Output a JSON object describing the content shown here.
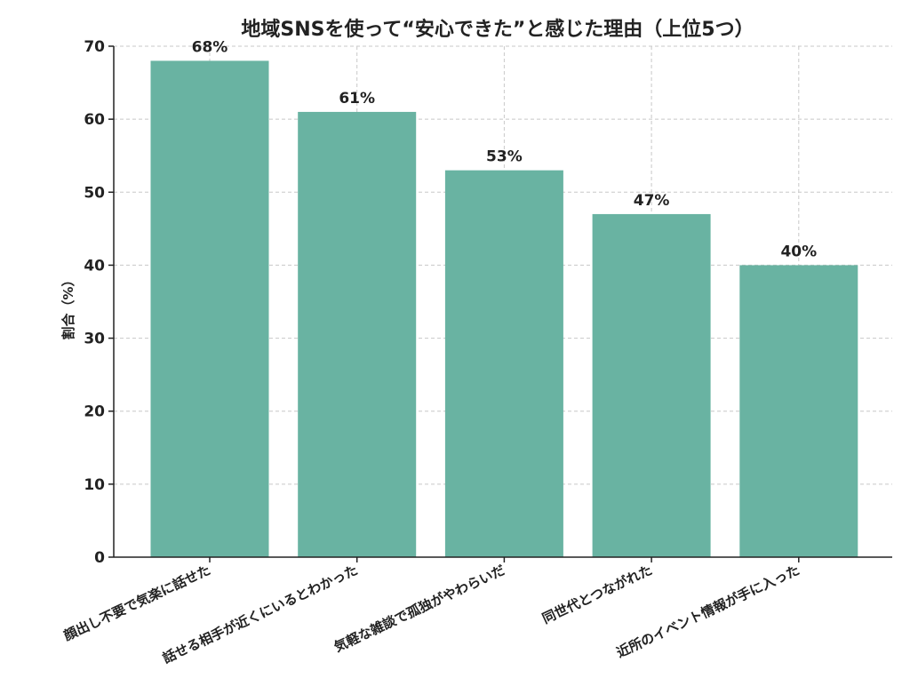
{
  "chart_data": {
    "type": "bar",
    "title": "地域SNSを使って“安心できた”と感じた理由（上位5つ）",
    "xlabel": "",
    "ylabel": "割合（%）",
    "categories": [
      "顔出し不要で気楽に話せた",
      "話せる相手が近くにいるとわかった",
      "気軽な雑談で孤独がやわらいだ",
      "同世代とつながれた",
      "近所のイベント情報が手に入った"
    ],
    "values": [
      68,
      61,
      53,
      47,
      40
    ],
    "value_labels": [
      "68%",
      "61%",
      "53%",
      "47%",
      "40%"
    ],
    "ylim": [
      0,
      70
    ],
    "yticks": [
      0,
      10,
      20,
      30,
      40,
      50,
      60,
      70
    ],
    "grid": true,
    "bar_color": "#69b3a2"
  }
}
